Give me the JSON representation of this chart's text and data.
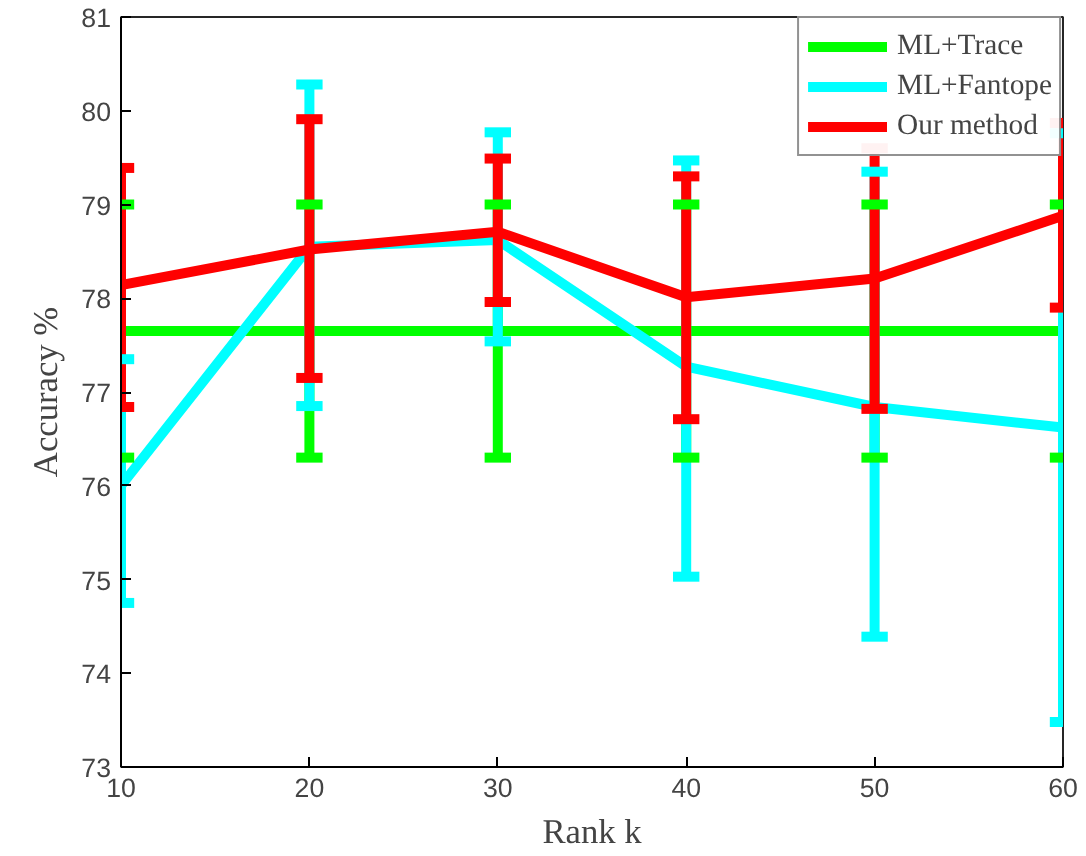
{
  "chart_data": {
    "type": "line",
    "xlabel": "Rank k",
    "ylabel": "Accuracy %",
    "x": [
      10,
      20,
      30,
      40,
      50,
      60
    ],
    "xlim": [
      10,
      60
    ],
    "ylim": [
      73,
      81
    ],
    "xticks": [
      10,
      20,
      30,
      40,
      50,
      60
    ],
    "yticks": [
      73,
      74,
      75,
      76,
      77,
      78,
      79,
      80,
      81
    ],
    "grid": false,
    "legend": "top right",
    "marker": "none",
    "line_style": "solid",
    "series": [
      {
        "name": "ML+Trace",
        "color": "#00ff00",
        "values": [
          77.65,
          77.65,
          77.65,
          77.65,
          77.65,
          77.65
        ],
        "errors": [
          1.35,
          1.35,
          1.35,
          1.35,
          1.35,
          1.35
        ]
      },
      {
        "name": "ML+Fantope",
        "color": "#00ffff",
        "values": [
          76.0,
          78.55,
          78.62,
          77.27,
          76.84,
          76.62
        ],
        "errors": [
          [
            74.75,
            77.35
          ],
          [
            76.85,
            80.28
          ],
          [
            77.54,
            79.77
          ],
          [
            75.03,
            79.47
          ],
          [
            74.39,
            79.35
          ],
          [
            73.48,
            79.76
          ]
        ]
      },
      {
        "name": "Our method",
        "color": "#ff0000",
        "values": [
          78.14,
          78.52,
          78.71,
          78.01,
          78.21,
          78.88
        ],
        "errors": [
          [
            76.84,
            79.39
          ],
          [
            77.15,
            79.91
          ],
          [
            77.96,
            79.49
          ],
          [
            76.71,
            79.3
          ],
          [
            76.82,
            79.6
          ],
          [
            77.9,
            79.87
          ]
        ]
      }
    ]
  }
}
